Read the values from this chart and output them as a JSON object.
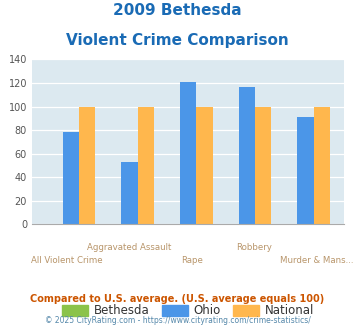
{
  "title_line1": "2009 Bethesda",
  "title_line2": "Violent Crime Comparison",
  "categories": [
    "All Violent Crime",
    "Aggravated Assault",
    "Rape",
    "Robbery",
    "Murder & Mans..."
  ],
  "bethesda": [
    0,
    0,
    0,
    0,
    0
  ],
  "ohio": [
    78,
    53,
    121,
    117,
    91
  ],
  "national": [
    100,
    100,
    100,
    100,
    100
  ],
  "bethesda_color": "#8bc34a",
  "ohio_color": "#4b96e8",
  "national_color": "#ffb74d",
  "ylim": [
    0,
    140
  ],
  "yticks": [
    0,
    20,
    40,
    60,
    80,
    100,
    120,
    140
  ],
  "plot_bg_color": "#dce9f0",
  "title_color": "#1a6bb5",
  "xlabel_color": "#b8956a",
  "legend_labels": [
    "Bethesda",
    "Ohio",
    "National"
  ],
  "footnote1": "Compared to U.S. average. (U.S. average equals 100)",
  "footnote2": "© 2025 CityRating.com - https://www.cityrating.com/crime-statistics/",
  "footnote1_color": "#cc5500",
  "footnote2_color": "#5588aa",
  "upper_labels": [
    "",
    "Aggravated Assault",
    "",
    "Robbery",
    ""
  ],
  "lower_labels": [
    "All Violent Crime",
    "",
    "Rape",
    "",
    "Murder & Mans..."
  ]
}
